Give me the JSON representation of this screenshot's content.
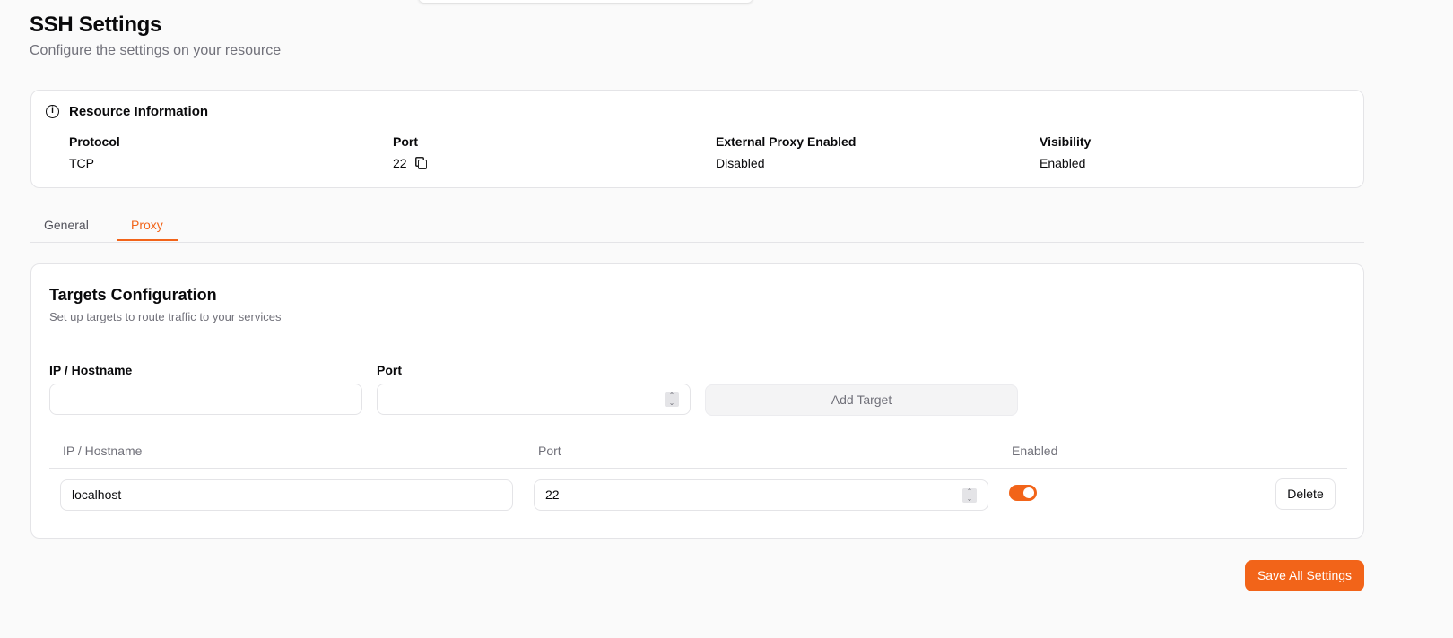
{
  "header": {
    "title": "SSH Settings",
    "subtitle": "Configure the settings on your resource"
  },
  "resource_info": {
    "title": "Resource Information",
    "columns": [
      {
        "label": "Protocol",
        "value": "TCP"
      },
      {
        "label": "Port",
        "value": "22"
      },
      {
        "label": "External Proxy Enabled",
        "value": "Disabled"
      },
      {
        "label": "Visibility",
        "value": "Enabled"
      }
    ]
  },
  "tabs": [
    {
      "label": "General",
      "active": false
    },
    {
      "label": "Proxy",
      "active": true
    }
  ],
  "targets": {
    "title": "Targets Configuration",
    "subtitle": "Set up targets to route traffic to your services",
    "form": {
      "ip_label": "IP / Hostname",
      "ip_value": "",
      "port_label": "Port",
      "port_value": "",
      "add_label": "Add Target"
    },
    "table": {
      "headers": [
        "IP / Hostname",
        "Port",
        "Enabled"
      ],
      "rows": [
        {
          "ip": "localhost",
          "port": "22",
          "enabled": true,
          "delete_label": "Delete"
        }
      ]
    }
  },
  "save_label": "Save All Settings",
  "colors": {
    "accent": "#f26419"
  }
}
